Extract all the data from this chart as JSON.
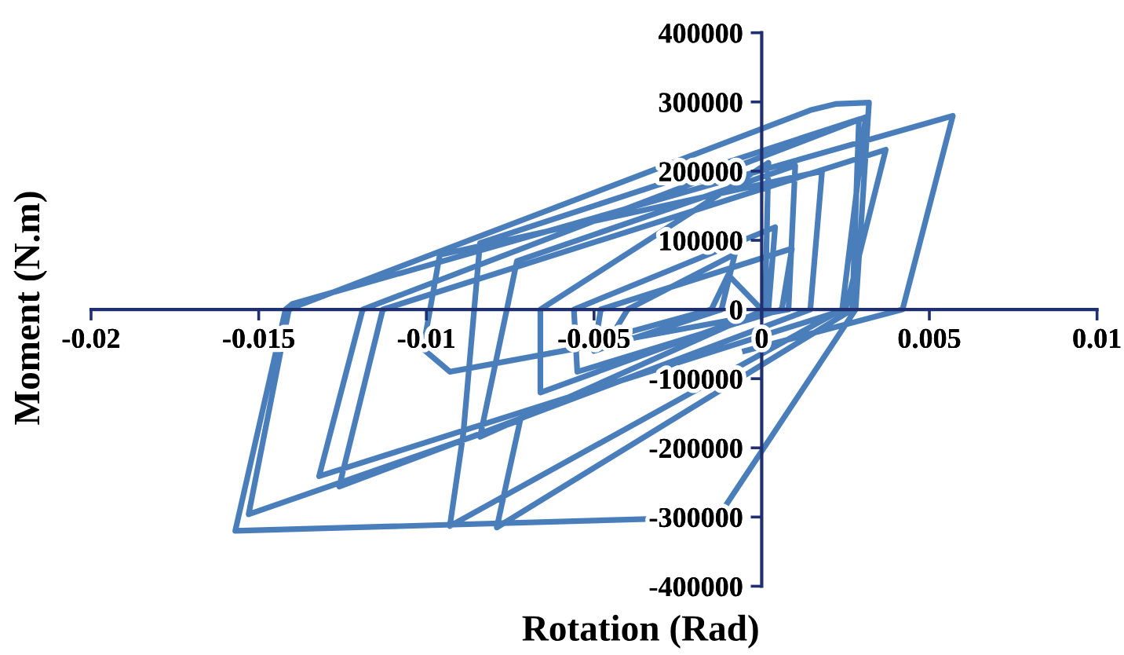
{
  "chart_data": {
    "type": "line",
    "xlabel": "Rotation (Rad)",
    "ylabel": "Moment (N.m)",
    "xlim": [
      -0.02,
      0.01
    ],
    "xticks": [
      -0.02,
      -0.015,
      -0.01,
      -0.005,
      0,
      0.005,
      0.01
    ],
    "ylim": [
      -400000,
      400000
    ],
    "yticks": [
      -400000,
      -300000,
      -200000,
      -100000,
      0,
      100000,
      200000,
      300000,
      400000
    ],
    "grid": false,
    "legend": false,
    "marker": "none",
    "line_style": "solid",
    "series": [
      {
        "color": "#4a7ebb",
        "x": [
          0,
          -0.001,
          -0.0015,
          -0.0045,
          -0.004,
          -0.0008,
          -0.0012,
          -0.005,
          -0.0048,
          0.0009,
          0.0006,
          -0.0055,
          -0.0056,
          0.0004,
          0.0002,
          -0.0066,
          -0.0066,
          0.0002,
          0.0001,
          -0.0084,
          -0.0076,
          -0.0073,
          0.001,
          0.0008,
          -0.0093,
          -0.0101,
          -0.0096,
          0.0018,
          0.00145,
          -0.0126,
          -0.0113,
          0.0037,
          0.0025,
          -0.0132,
          -0.0119,
          0.0031,
          0.0024,
          -0.0093,
          -0.0089,
          -0.0084,
          0.0029,
          0.0027,
          -0.0079,
          -0.0072,
          -0.0153,
          -0.0141,
          -0.0137,
          0.00145,
          0.0022,
          0.0032,
          0.0028,
          -0.0013,
          -0.0157,
          -0.0142,
          -0.014,
          0.0057,
          0.0042,
          -0.0005
        ],
        "values": [
          0,
          50000,
          0,
          -40000,
          0,
          80000,
          0,
          -60000,
          0,
          88000,
          0,
          -90000,
          0,
          119000,
          0,
          -120000,
          0,
          212000,
          0,
          -184000,
          0,
          70000,
          208000,
          0,
          -90000,
          -57000,
          79000,
          200000,
          0,
          -256000,
          0,
          231000,
          0,
          -241000,
          0,
          278000,
          0,
          -313000,
          -180000,
          96000,
          275000,
          0,
          -315000,
          -160000,
          -296000,
          0,
          8000,
          288000,
          297000,
          299000,
          0,
          -300000,
          -320000,
          0,
          8000,
          280000,
          0,
          -60000
        ]
      }
    ]
  }
}
